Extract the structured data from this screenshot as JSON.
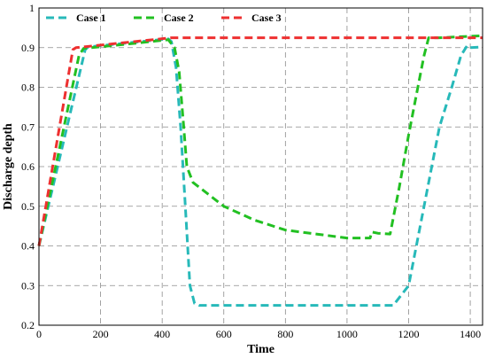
{
  "chart_data": {
    "type": "line",
    "title": "",
    "xlabel": "Time",
    "ylabel": "Discharge depth",
    "xlim": [
      0,
      1440
    ],
    "ylim": [
      0.2,
      1.0
    ],
    "xticks": [
      0,
      200,
      400,
      600,
      800,
      1000,
      1200,
      1400
    ],
    "yticks": [
      0.2,
      0.3,
      0.4,
      0.5,
      0.6,
      0.7,
      0.8,
      0.9,
      1.0
    ],
    "ytick_labels": [
      "0.2",
      "0.3",
      "0.4",
      "0.5",
      "0.6",
      "0.7",
      "0.8",
      "0.9",
      "1"
    ],
    "grid": true,
    "legend_position": "top-left",
    "series": [
      {
        "name": "Case 1",
        "color": "#27b9b9",
        "points": [
          [
            0,
            0.4
          ],
          [
            150,
            0.895
          ],
          [
            160,
            0.902
          ],
          [
            420,
            0.922
          ],
          [
            430,
            0.915
          ],
          [
            445,
            0.85
          ],
          [
            460,
            0.7
          ],
          [
            475,
            0.5
          ],
          [
            490,
            0.3
          ],
          [
            505,
            0.255
          ],
          [
            520,
            0.25
          ],
          [
            600,
            0.25
          ],
          [
            800,
            0.25
          ],
          [
            1000,
            0.25
          ],
          [
            1150,
            0.25
          ],
          [
            1200,
            0.3
          ],
          [
            1250,
            0.5
          ],
          [
            1300,
            0.7
          ],
          [
            1340,
            0.8
          ],
          [
            1370,
            0.88
          ],
          [
            1390,
            0.905
          ],
          [
            1400,
            0.9
          ],
          [
            1440,
            0.902
          ]
        ]
      },
      {
        "name": "Case 2",
        "color": "#22c022",
        "points": [
          [
            0,
            0.4
          ],
          [
            130,
            0.88
          ],
          [
            145,
            0.898
          ],
          [
            300,
            0.91
          ],
          [
            420,
            0.92
          ],
          [
            440,
            0.9
          ],
          [
            455,
            0.84
          ],
          [
            470,
            0.7
          ],
          [
            480,
            0.6
          ],
          [
            500,
            0.56
          ],
          [
            550,
            0.53
          ],
          [
            600,
            0.5
          ],
          [
            700,
            0.465
          ],
          [
            800,
            0.44
          ],
          [
            900,
            0.43
          ],
          [
            1000,
            0.42
          ],
          [
            1075,
            0.42
          ],
          [
            1080,
            0.435
          ],
          [
            1100,
            0.432
          ],
          [
            1140,
            0.43
          ],
          [
            1170,
            0.55
          ],
          [
            1200,
            0.68
          ],
          [
            1230,
            0.8
          ],
          [
            1250,
            0.88
          ],
          [
            1265,
            0.925
          ],
          [
            1300,
            0.925
          ],
          [
            1440,
            0.93
          ]
        ]
      },
      {
        "name": "Case 3",
        "color": "#ee3030",
        "points": [
          [
            0,
            0.4
          ],
          [
            110,
            0.895
          ],
          [
            120,
            0.9
          ],
          [
            430,
            0.925
          ],
          [
            800,
            0.925
          ],
          [
            1200,
            0.925
          ],
          [
            1440,
            0.925
          ]
        ]
      }
    ]
  }
}
